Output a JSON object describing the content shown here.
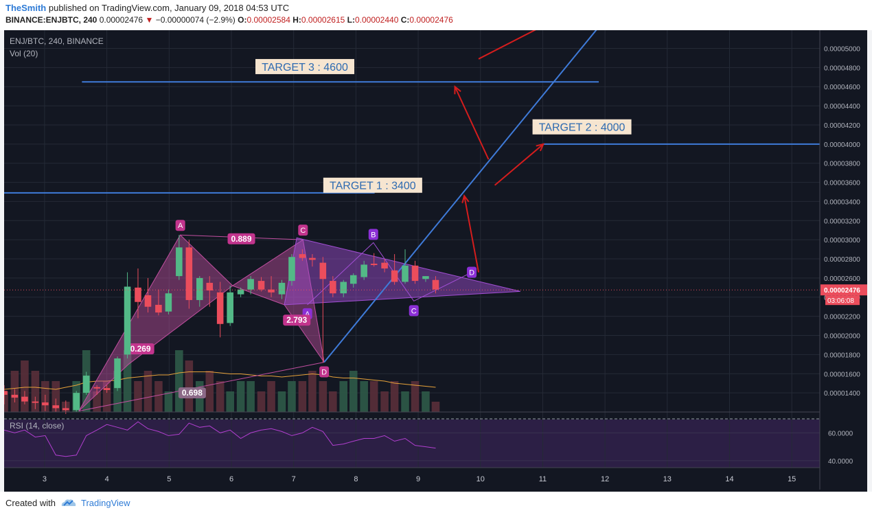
{
  "header": {
    "author": "TheSmith",
    "published": "published on TradingView.com, January 09, 2018 04:53 UTC",
    "symbol_tf": "BINANCE:ENJBTC, 240",
    "price": "0.00002476",
    "change_arrow": "▼",
    "change": "−0.00000074 (−2.9%)",
    "o_label": "O:",
    "o": "0.00002584",
    "h_label": "H:",
    "h": "0.00002615",
    "l_label": "L:",
    "l": "0.00002440",
    "c_label": "C:",
    "c": "0.00002476"
  },
  "pane": {
    "symbol": "ENJ/BTC, 240, BINANCE",
    "vol_label": "Vol (20)",
    "rsi_label": "RSI (14, close)"
  },
  "footer": {
    "created_with": "Created with",
    "brand": "TradingView"
  },
  "colors": {
    "background": "#131722",
    "up": "#53b987",
    "down": "#eb4d5c",
    "trendline": "#3f7bd9",
    "arrow": "#d51d1d",
    "pattern": "#c24fa0",
    "triangle": "#a34fd6",
    "rsi_band": "#2c1f45"
  },
  "chart_data": {
    "type": "candlestick",
    "price_axis": {
      "ylim": [
        1.2e-05,
        5.19e-05
      ],
      "ticks": [
        "0.00001400",
        "0.00001600",
        "0.00001800",
        "0.00002000",
        "0.00002200",
        "0.00002400",
        "0.00002600",
        "0.00002800",
        "0.00003000",
        "0.00003200",
        "0.00003400",
        "0.00003600",
        "0.00003800",
        "0.00004000",
        "0.00004200",
        "0.00004400",
        "0.00004600",
        "0.00004800",
        "0.00005000"
      ],
      "last_price": "0.00002476",
      "countdown": "03:06:08"
    },
    "time_axis": {
      "xlim": [
        2.35,
        15.45
      ],
      "ticks": [
        3,
        4,
        5,
        6,
        7,
        8,
        9,
        10,
        11,
        12,
        13,
        14,
        15
      ]
    },
    "candles": [
      {
        "x": 2.35,
        "o": 1.42e-05,
        "h": 1.48e-05,
        "l": 1.28e-05,
        "c": 1.38e-05
      },
      {
        "x": 2.52,
        "o": 1.38e-05,
        "h": 1.44e-05,
        "l": 1.3e-05,
        "c": 1.35e-05
      },
      {
        "x": 2.68,
        "o": 1.36e-05,
        "h": 1.42e-05,
        "l": 1.28e-05,
        "c": 1.31e-05
      },
      {
        "x": 2.85,
        "o": 1.31e-05,
        "h": 1.36e-05,
        "l": 1.23e-05,
        "c": 1.3e-05
      },
      {
        "x": 3.01,
        "o": 1.3e-05,
        "h": 1.38e-05,
        "l": 1.21e-05,
        "c": 1.27e-05
      },
      {
        "x": 3.18,
        "o": 1.27e-05,
        "h": 1.34e-05,
        "l": 1.2e-05,
        "c": 1.24e-05
      },
      {
        "x": 3.34,
        "o": 1.24e-05,
        "h": 1.32e-05,
        "l": 1.18e-05,
        "c": 1.22e-05
      },
      {
        "x": 3.51,
        "o": 1.22e-05,
        "h": 1.42e-05,
        "l": 1.2e-05,
        "c": 1.4e-05
      },
      {
        "x": 3.67,
        "o": 1.4e-05,
        "h": 1.62e-05,
        "l": 1.38e-05,
        "c": 1.58e-05
      },
      {
        "x": 3.84,
        "o": 1.46e-05,
        "h": 1.48e-05,
        "l": 1.38e-05,
        "c": 1.45e-05
      },
      {
        "x": 4.0,
        "o": 1.45e-05,
        "h": 1.48e-05,
        "l": 1.4e-05,
        "c": 1.43e-05
      },
      {
        "x": 4.17,
        "o": 1.45e-05,
        "h": 1.78e-05,
        "l": 1.42e-05,
        "c": 1.76e-05
      },
      {
        "x": 4.33,
        "o": 1.8e-05,
        "h": 2.66e-05,
        "l": 1.76e-05,
        "c": 2.51e-05
      },
      {
        "x": 4.5,
        "o": 2.5e-05,
        "h": 2.7e-05,
        "l": 2.18e-05,
        "c": 2.35e-05
      },
      {
        "x": 4.66,
        "o": 2.42e-05,
        "h": 2.6e-05,
        "l": 2.24e-05,
        "c": 2.3e-05
      },
      {
        "x": 4.83,
        "o": 2.32e-05,
        "h": 2.48e-05,
        "l": 2.21e-05,
        "c": 2.24e-05
      },
      {
        "x": 4.99,
        "o": 2.25e-05,
        "h": 2.48e-05,
        "l": 2.22e-05,
        "c": 2.44e-05
      },
      {
        "x": 5.16,
        "o": 2.62e-05,
        "h": 3.05e-05,
        "l": 2.58e-05,
        "c": 2.92e-05
      },
      {
        "x": 5.32,
        "o": 2.92e-05,
        "h": 3e-05,
        "l": 2.28e-05,
        "c": 2.37e-05
      },
      {
        "x": 5.49,
        "o": 2.37e-05,
        "h": 2.62e-05,
        "l": 2.3e-05,
        "c": 2.6e-05
      },
      {
        "x": 5.65,
        "o": 2.55e-05,
        "h": 2.62e-05,
        "l": 2.3e-05,
        "c": 2.47e-05
      },
      {
        "x": 5.82,
        "o": 2.45e-05,
        "h": 2.56e-05,
        "l": 1.98e-05,
        "c": 2.12e-05
      },
      {
        "x": 5.98,
        "o": 2.13e-05,
        "h": 2.52e-05,
        "l": 2.1e-05,
        "c": 2.45e-05
      },
      {
        "x": 6.15,
        "o": 2.43e-05,
        "h": 2.5e-05,
        "l": 2.4e-05,
        "c": 2.48e-05
      },
      {
        "x": 6.31,
        "o": 2.48e-05,
        "h": 2.62e-05,
        "l": 2.43e-05,
        "c": 2.59e-05
      },
      {
        "x": 6.48,
        "o": 2.57e-05,
        "h": 2.61e-05,
        "l": 2.46e-05,
        "c": 2.48e-05
      },
      {
        "x": 6.64,
        "o": 2.48e-05,
        "h": 2.62e-05,
        "l": 2.4e-05,
        "c": 2.45e-05
      },
      {
        "x": 6.81,
        "o": 2.43e-05,
        "h": 2.58e-05,
        "l": 2.38e-05,
        "c": 2.55e-05
      },
      {
        "x": 6.97,
        "o": 2.57e-05,
        "h": 2.85e-05,
        "l": 2.52e-05,
        "c": 2.82e-05
      },
      {
        "x": 7.14,
        "o": 2.85e-05,
        "h": 2.9e-05,
        "l": 2.78e-05,
        "c": 2.81e-05
      },
      {
        "x": 7.3,
        "o": 2.81e-05,
        "h": 2.85e-05,
        "l": 2.72e-05,
        "c": 2.79e-05
      },
      {
        "x": 7.47,
        "o": 2.76e-05,
        "h": 2.82e-05,
        "l": 1.72e-05,
        "c": 2.59e-05
      },
      {
        "x": 7.63,
        "o": 2.57e-05,
        "h": 2.62e-05,
        "l": 2.4e-05,
        "c": 2.44e-05
      },
      {
        "x": 7.8,
        "o": 2.44e-05,
        "h": 2.58e-05,
        "l": 2.4e-05,
        "c": 2.56e-05
      },
      {
        "x": 7.96,
        "o": 2.54e-05,
        "h": 2.65e-05,
        "l": 2.5e-05,
        "c": 2.63e-05
      },
      {
        "x": 8.13,
        "o": 2.61e-05,
        "h": 2.78e-05,
        "l": 2.58e-05,
        "c": 2.74e-05
      },
      {
        "x": 8.29,
        "o": 2.75e-05,
        "h": 2.86e-05,
        "l": 2.72e-05,
        "c": 2.74e-05
      },
      {
        "x": 8.46,
        "o": 2.76e-05,
        "h": 2.8e-05,
        "l": 2.66e-05,
        "c": 2.7e-05
      },
      {
        "x": 8.62,
        "o": 2.68e-05,
        "h": 2.85e-05,
        "l": 2.53e-05,
        "c": 2.56e-05
      },
      {
        "x": 8.79,
        "o": 2.56e-05,
        "h": 2.9e-05,
        "l": 2.54e-05,
        "c": 2.73e-05
      },
      {
        "x": 8.95,
        "o": 2.73e-05,
        "h": 2.78e-05,
        "l": 2.54e-05,
        "c": 2.57e-05
      },
      {
        "x": 9.12,
        "o": 2.59e-05,
        "h": 2.62e-05,
        "l": 2.56e-05,
        "c": 2.62e-05
      },
      {
        "x": 9.28,
        "o": 2.58e-05,
        "h": 2.62e-05,
        "l": 2.44e-05,
        "c": 2.48e-05
      }
    ],
    "volume": [
      2,
      4,
      5,
      4,
      3,
      3,
      1,
      3,
      6,
      2,
      3,
      4,
      6,
      3,
      4,
      3,
      2,
      6,
      5,
      3,
      4,
      3,
      2,
      3,
      3,
      2,
      3,
      2,
      3,
      3,
      4,
      3,
      2,
      3,
      4,
      3,
      3,
      2,
      3,
      2,
      3,
      2,
      1
    ],
    "volume_ma": [
      2.2,
      2.3,
      2.4,
      2.4,
      2.3,
      2.2,
      2.4,
      2.6,
      2.9,
      3.0,
      3.0,
      3.1,
      3.3,
      3.4,
      3.5,
      3.6,
      3.6,
      3.8,
      3.9,
      3.9,
      3.9,
      3.8,
      3.7,
      3.7,
      3.6,
      3.5,
      3.5,
      3.4,
      3.5,
      3.6,
      3.7,
      3.6,
      3.4,
      3.3,
      3.3,
      3.2,
      3.1,
      3.0,
      2.8,
      2.7,
      2.6,
      2.5,
      2.4
    ],
    "rsi": {
      "ylim": [
        35,
        75
      ],
      "ticks": [
        "40.0000",
        "60.0000"
      ],
      "values": [
        62,
        60,
        62,
        57,
        58,
        44,
        43,
        44,
        58,
        62,
        66,
        64,
        62,
        68,
        63,
        61,
        58,
        59,
        67,
        64,
        65,
        60,
        62,
        56,
        60,
        62,
        63,
        61,
        58,
        60,
        64,
        61,
        51,
        52,
        54,
        56,
        56,
        58,
        54,
        56,
        51,
        50,
        49
      ]
    },
    "annotations": {
      "targets": [
        {
          "label": "TARGET 1 : 3400",
          "y": 3.49e-05,
          "x0": 2.35,
          "x1": 8.3
        },
        {
          "label": "TARGET 2 : 4000",
          "y": 4e-05,
          "x0": 11.0,
          "x1": 15.45
        },
        {
          "label": "TARGET 3 : 4600",
          "y": 4.65e-05,
          "x0": 3.6,
          "x1": 11.9
        }
      ],
      "pattern_points": [
        {
          "label": "A",
          "x": 5.18,
          "y": 3.05e-05
        },
        {
          "label": "C",
          "x": 7.15,
          "y": 3e-05
        },
        {
          "label": "D",
          "x": 7.49,
          "y": 1.72e-05
        },
        {
          "label": "A",
          "x": 7.22,
          "y": 2.32e-05
        },
        {
          "label": "B",
          "x": 8.28,
          "y": 2.97e-05
        },
        {
          "label": "C",
          "x": 8.93,
          "y": 2.36e-05
        },
        {
          "label": "D",
          "x": 9.86,
          "y": 2.66e-05
        }
      ],
      "ratios": [
        "0.889",
        "0.269",
        "2.793",
        "0.698"
      ]
    }
  }
}
